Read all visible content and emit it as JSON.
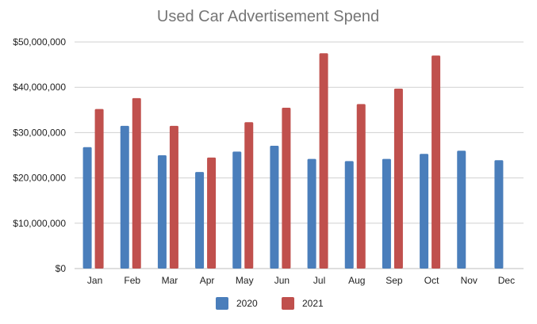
{
  "chart_data": {
    "type": "bar",
    "title": "Used Car Advertisement Spend",
    "xlabel": "",
    "ylabel": "",
    "categories": [
      "Jan",
      "Feb",
      "Mar",
      "Apr",
      "May",
      "Jun",
      "Jul",
      "Aug",
      "Sep",
      "Oct",
      "Nov",
      "Dec"
    ],
    "series": [
      {
        "name": "2020",
        "color": "#4a7ebb",
        "values": [
          26800000,
          31500000,
          25000000,
          21300000,
          25800000,
          27100000,
          24200000,
          23700000,
          24200000,
          25300000,
          26000000,
          23900000
        ]
      },
      {
        "name": "2021",
        "color": "#c0504d",
        "values": [
          35200000,
          37600000,
          31500000,
          24500000,
          32300000,
          35500000,
          47500000,
          36300000,
          39700000,
          47000000,
          null,
          null
        ]
      }
    ],
    "ylim": [
      0,
      50000000
    ],
    "yticks": [
      0,
      10000000,
      20000000,
      30000000,
      40000000,
      50000000
    ],
    "ytick_labels": [
      "$0",
      "$10,000,000",
      "$20,000,000",
      "$30,000,000",
      "$40,000,000",
      "$50,000,000"
    ],
    "grid": true,
    "legend_position": "bottom"
  }
}
